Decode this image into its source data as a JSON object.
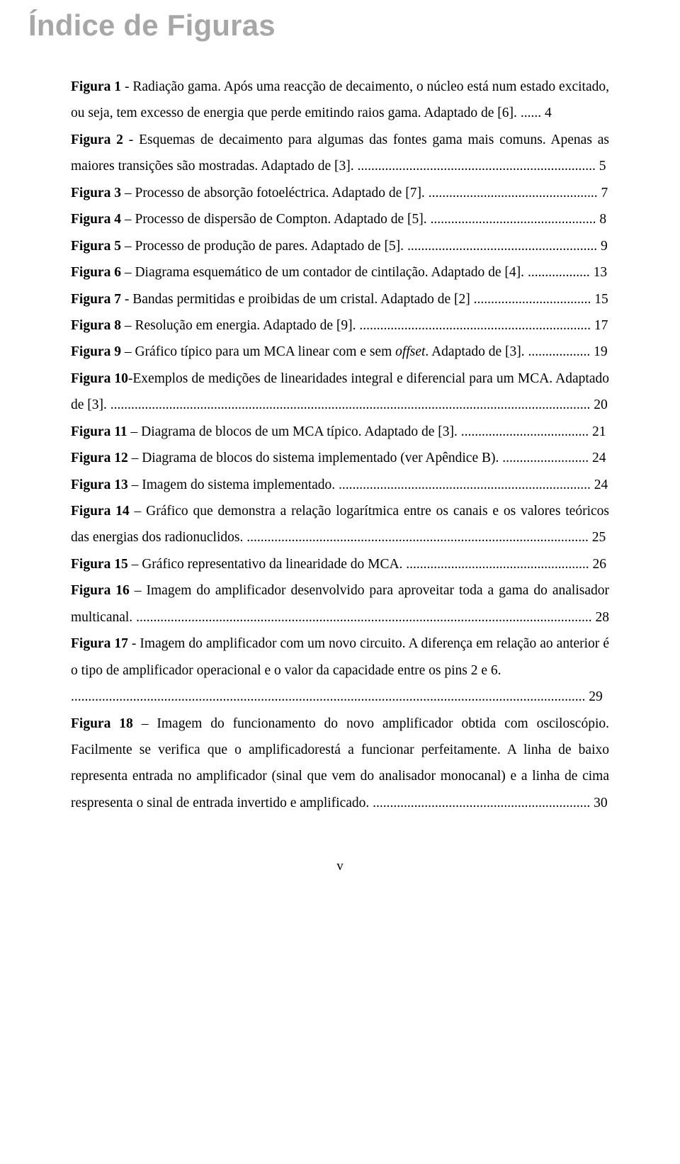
{
  "title": "Índice de Figuras",
  "entries": [
    {
      "label": "Figura 1",
      "sep": "-",
      "desc": "Radiação gama. Após uma reacção de decaimento, o núcleo está num estado excitado, ou seja, tem excesso de energia que perde emitindo raios gama. Adaptado de [6].",
      "page": "4"
    },
    {
      "label": "Figura 2",
      "sep": "-",
      "desc": "Esquemas de decaimento para algumas das fontes gama mais comuns. Apenas as maiores transições são mostradas. Adaptado de [3].",
      "page": "5"
    },
    {
      "label": "Figura 3",
      "sep": "–",
      "desc": "Processo de absorção fotoeléctrica. Adaptado de [7].",
      "page": "7"
    },
    {
      "label": "Figura 4",
      "sep": "–",
      "desc": "Processo de dispersão de Compton. Adaptado de [5].",
      "page": "8"
    },
    {
      "label": "Figura 5",
      "sep": "–",
      "desc": "Processo de produção de pares. Adaptado de [5].",
      "page": "9"
    },
    {
      "label": "Figura 6",
      "sep": "–",
      "desc": "Diagrama esquemático de um contador de cintilação. Adaptado de [4].",
      "page": "13"
    },
    {
      "label": "Figura 7",
      "sep": "-",
      "desc": "Bandas permitidas e proibidas de um cristal. Adaptado de [2]",
      "page": "15"
    },
    {
      "label": "Figura 8",
      "sep": "–",
      "desc": "Resolução em energia. Adaptado de [9].",
      "page": "17"
    },
    {
      "label": "Figura 9",
      "sep": "–",
      "desc_pre": "Gráfico típico para um MCA linear com e sem ",
      "desc_italic": "offset",
      "desc_post": ". Adaptado de [3].",
      "page": "19"
    },
    {
      "label": "Figura 10",
      "sep": "-",
      "desc": "Exemplos de medições de linearidades integral e diferencial para um MCA. Adaptado de [3].",
      "page": "20",
      "nospace": true
    },
    {
      "label": "Figura 11",
      "sep": "–",
      "desc": "Diagrama de blocos de um MCA típico. Adaptado de [3].",
      "page": "21"
    },
    {
      "label": "Figura 12",
      "sep": "–",
      "desc": "Diagrama de blocos do sistema implementado (ver Apêndice B).",
      "page": "24"
    },
    {
      "label": "Figura 13",
      "sep": "–",
      "desc": "Imagem do sistema implementado.",
      "page": "24"
    },
    {
      "label": "Figura 14",
      "sep": "–",
      "desc": "Gráfico que demonstra a relação logarítmica entre os canais e os valores teóricos das energias dos radionuclidos.",
      "page": "25"
    },
    {
      "label": "Figura 15",
      "sep": "–",
      "desc": "Gráfico representativo da linearidade do MCA.",
      "page": "26"
    },
    {
      "label": "Figura 16",
      "sep": "–",
      "desc": "Imagem do amplificador desenvolvido para aproveitar toda a gama do analisador multicanal.",
      "page": "28"
    },
    {
      "label": "Figura 17",
      "sep": "-",
      "desc": "Imagem do amplificador com um novo circuito. A diferença em relação ao anterior é o tipo de amplificador operacional e o valor da capacidade entre os pins 2 e 6.",
      "page": "29",
      "dots_newline": true
    },
    {
      "label": "Figura 18",
      "sep": "–",
      "desc": "Imagem do funcionamento do novo amplificador obtida com osciloscópio. Facilmente se verifica que o amplificadorestá a funcionar perfeitamente. A linha de baixo representa entrada no amplificador (sinal que vem do analisador monocanal) e a linha de cima respresenta o sinal de entrada invertido e amplificado.",
      "page": "30"
    }
  ],
  "footer_page": "v",
  "colors": {
    "title": "#a7a7a7",
    "text": "#000000",
    "bg": "#ffffff"
  },
  "typography": {
    "title_fontsize": 42,
    "body_fontsize": 19.5,
    "line_height": 1.92,
    "title_family": "Arial",
    "body_family": "Times New Roman"
  }
}
